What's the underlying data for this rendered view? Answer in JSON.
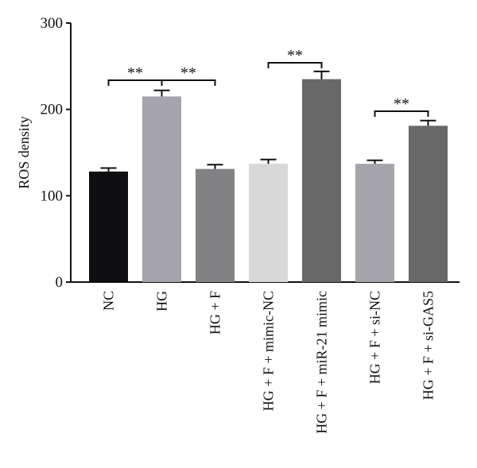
{
  "chart_data": {
    "type": "bar",
    "title": "",
    "xlabel": "",
    "ylabel": "ROS density",
    "ylim": [
      0,
      300
    ],
    "yticks": [
      0,
      100,
      200,
      300
    ],
    "grid": false,
    "categories": [
      "NC",
      "HG",
      "HG + F",
      "HG + F + mimic-NC",
      "HG + F + miR-21 mimic",
      "HG + F + si-NC",
      "HG + F + si-GAS5"
    ],
    "values": [
      128,
      215,
      131,
      137,
      235,
      137,
      181
    ],
    "errors": [
      4,
      7,
      5,
      5,
      9,
      4,
      6
    ],
    "colors": [
      "#0f0f12",
      "#a5a5ab",
      "#828285",
      "#d8d8d8",
      "#686868",
      "#a5a5ab",
      "#686868"
    ],
    "significance": [
      {
        "from": 0,
        "to": 1,
        "label": "**"
      },
      {
        "from": 1,
        "to": 2,
        "label": "**"
      },
      {
        "from": 3,
        "to": 4,
        "label": "**"
      },
      {
        "from": 5,
        "to": 6,
        "label": "**"
      }
    ]
  }
}
